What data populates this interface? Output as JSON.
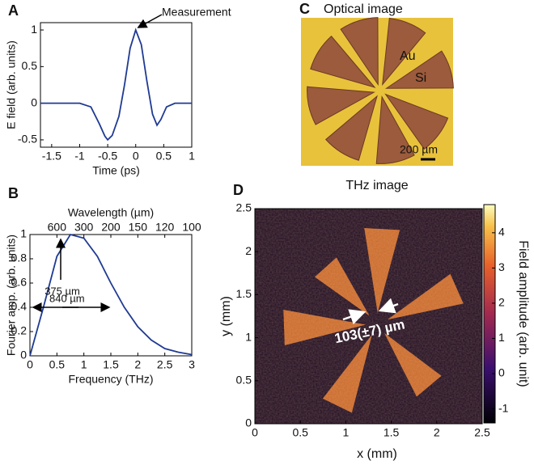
{
  "chart_data": [
    {
      "type": "line",
      "panel": "A",
      "xlabel": "Time (ps)",
      "ylabel": "E field (arb. units)",
      "x": [
        -1.7,
        -1.0,
        -0.8,
        -0.65,
        -0.55,
        -0.5,
        -0.42,
        -0.3,
        -0.2,
        -0.1,
        0,
        0.1,
        0.2,
        0.3,
        0.38,
        0.45,
        0.55,
        0.7,
        0.85,
        1.0
      ],
      "values": [
        0,
        0,
        -0.05,
        -0.28,
        -0.45,
        -0.5,
        -0.44,
        -0.18,
        0.25,
        0.75,
        1,
        0.8,
        0.3,
        -0.15,
        -0.3,
        -0.22,
        -0.05,
        0,
        0,
        0
      ],
      "color": "#1f3a93",
      "xlim": [
        -1.7,
        1
      ],
      "xticks": [
        -1.5,
        -1,
        -0.5,
        0,
        0.5,
        1
      ],
      "ylim": [
        -0.6,
        1.1
      ],
      "yticks": [
        -0.5,
        0,
        0.5,
        1
      ],
      "annotations": [
        "Measurement"
      ]
    },
    {
      "type": "line",
      "panel": "B",
      "xlabel": "Frequency (THz)",
      "ylabel": "Fourier amp. (arb. units)",
      "x2label": "Wavelength (µm)",
      "x": [
        0,
        0.25,
        0.5,
        0.75,
        1.0,
        1.25,
        1.5,
        1.75,
        2.0,
        2.25,
        2.5,
        2.75,
        3.0
      ],
      "values": [
        0,
        0.4,
        0.82,
        1,
        0.97,
        0.82,
        0.6,
        0.4,
        0.24,
        0.13,
        0.06,
        0.03,
        0.01
      ],
      "color": "#1f3a93",
      "xlim": [
        0,
        3
      ],
      "xticks": [
        0,
        0.5,
        1,
        1.5,
        2,
        2.5,
        3
      ],
      "x2ticks": [
        600,
        300,
        200,
        150,
        120,
        100
      ],
      "ylim": [
        0,
        1
      ],
      "yticks": [
        0,
        0.2,
        0.4,
        0.6,
        0.8,
        1
      ],
      "annotations": [
        "375 µm",
        "840 µm"
      ]
    },
    {
      "type": "photo",
      "panel": "C",
      "title": "Optical image",
      "annotations": [
        "Au",
        "Si",
        "200 µm"
      ]
    },
    {
      "type": "image",
      "panel": "D",
      "title": "THz image",
      "xlabel": "x (mm)",
      "ylabel": "y (mm)",
      "xlim": [
        0,
        2.5
      ],
      "xticks": [
        0,
        0.5,
        1,
        1.5,
        2,
        2.5
      ],
      "ylim": [
        0,
        2.5
      ],
      "yticks": [
        0,
        0.5,
        1,
        1.5,
        2,
        2.5
      ],
      "colorbar": {
        "label": "Field amplitude (arb. unit)",
        "lim": [
          -1.4,
          4.8
        ],
        "ticks": [
          -1,
          0,
          1,
          2,
          3,
          4
        ]
      },
      "annotations": [
        "103(±7) µm"
      ]
    }
  ]
}
